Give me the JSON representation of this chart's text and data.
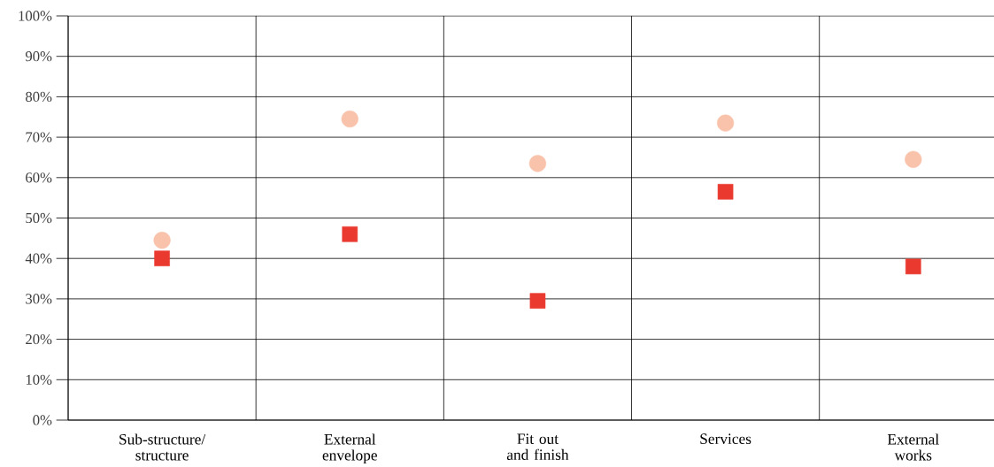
{
  "chart_data": {
    "type": "scatter",
    "categories": [
      "Sub-structure/ structure",
      "External envelope",
      "Fit out and finish",
      "Services",
      "External works"
    ],
    "series": [
      {
        "color": "#f9c3ab",
        "marker": "circle",
        "values": [
          44.5,
          74.5,
          63.5,
          73.5,
          64.5
        ]
      },
      {
        "color": "#ea3a30",
        "marker": "square",
        "values": [
          40,
          46,
          29.5,
          56.5,
          38
        ]
      }
    ],
    "ylim": [
      0,
      100
    ],
    "yticks": [
      {
        "value": 0,
        "label": "0%"
      },
      {
        "value": 10,
        "label": "10%"
      },
      {
        "value": 20,
        "label": "20%"
      },
      {
        "value": 30,
        "label": "30%"
      },
      {
        "value": 40,
        "label": "40%"
      },
      {
        "value": 50,
        "label": "50%"
      },
      {
        "value": 60,
        "label": "60%"
      },
      {
        "value": 70,
        "label": "70%"
      },
      {
        "value": 80,
        "label": "80%"
      },
      {
        "value": 90,
        "label": "90%"
      },
      {
        "value": 100,
        "label": "100%"
      }
    ],
    "grid": true
  }
}
